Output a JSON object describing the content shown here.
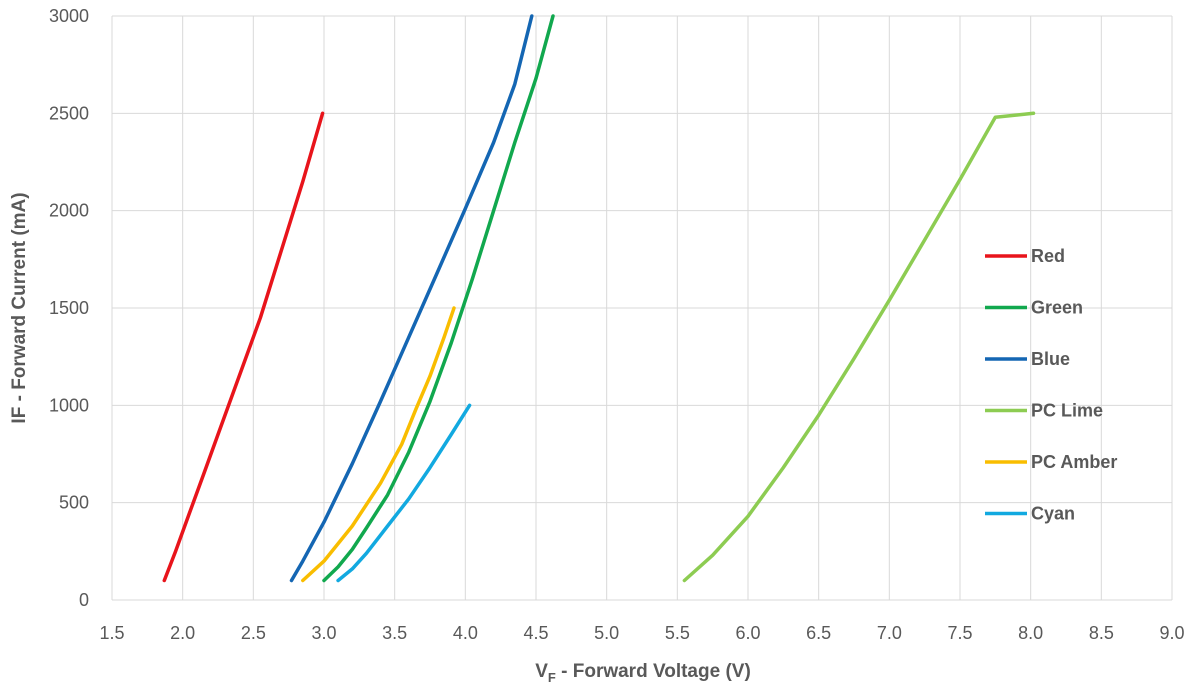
{
  "chart_data": {
    "type": "line",
    "title": "",
    "xlabel_main": "V",
    "xlabel_sub": "F",
    "xlabel_rest": " - Forward Voltage (V)",
    "ylabel": "IF - Forward Current (mA)",
    "xlim": [
      1.5,
      9.0
    ],
    "ylim": [
      0,
      3000
    ],
    "x_ticks": [
      "1.5",
      "2.0",
      "2.5",
      "3.0",
      "3.5",
      "4.0",
      "4.5",
      "5.0",
      "5.5",
      "6.0",
      "6.5",
      "7.0",
      "7.5",
      "8.0",
      "8.5",
      "9.0"
    ],
    "y_ticks": [
      "0",
      "500",
      "1000",
      "1500",
      "2000",
      "2500",
      "3000"
    ],
    "grid": true,
    "legend_position": "right",
    "series": [
      {
        "name": "Red",
        "color": "#e8141b",
        "points": [
          [
            1.87,
            100
          ],
          [
            1.95,
            250
          ],
          [
            2.05,
            450
          ],
          [
            2.15,
            650
          ],
          [
            2.25,
            850
          ],
          [
            2.4,
            1150
          ],
          [
            2.55,
            1450
          ],
          [
            2.7,
            1800
          ],
          [
            2.85,
            2150
          ],
          [
            2.99,
            2500
          ]
        ]
      },
      {
        "name": "Green",
        "color": "#11a84e",
        "points": [
          [
            3.0,
            100
          ],
          [
            3.1,
            170
          ],
          [
            3.2,
            260
          ],
          [
            3.3,
            370
          ],
          [
            3.45,
            540
          ],
          [
            3.6,
            760
          ],
          [
            3.75,
            1020
          ],
          [
            3.9,
            1320
          ],
          [
            4.05,
            1650
          ],
          [
            4.2,
            2000
          ],
          [
            4.35,
            2350
          ],
          [
            4.5,
            2680
          ],
          [
            4.62,
            3000
          ]
        ]
      },
      {
        "name": "Blue",
        "color": "#1466b3",
        "points": [
          [
            2.77,
            100
          ],
          [
            2.85,
            200
          ],
          [
            3.0,
            400
          ],
          [
            3.2,
            700
          ],
          [
            3.4,
            1020
          ],
          [
            3.6,
            1350
          ],
          [
            3.8,
            1680
          ],
          [
            4.0,
            2010
          ],
          [
            4.2,
            2350
          ],
          [
            4.35,
            2650
          ],
          [
            4.47,
            3000
          ]
        ]
      },
      {
        "name": "PC Lime",
        "color": "#8dcc52",
        "points": [
          [
            5.55,
            100
          ],
          [
            5.75,
            230
          ],
          [
            6.0,
            430
          ],
          [
            6.25,
            680
          ],
          [
            6.5,
            950
          ],
          [
            6.75,
            1240
          ],
          [
            7.0,
            1540
          ],
          [
            7.25,
            1850
          ],
          [
            7.5,
            2160
          ],
          [
            7.75,
            2480
          ],
          [
            8.02,
            2500
          ]
        ]
      },
      {
        "name": "PC Amber",
        "color": "#f9bd00",
        "points": [
          [
            2.85,
            100
          ],
          [
            3.0,
            200
          ],
          [
            3.2,
            380
          ],
          [
            3.4,
            600
          ],
          [
            3.55,
            800
          ],
          [
            3.65,
            980
          ],
          [
            3.75,
            1150
          ],
          [
            3.85,
            1350
          ],
          [
            3.92,
            1500
          ]
        ]
      },
      {
        "name": "Cyan",
        "color": "#12a9e0",
        "points": [
          [
            3.1,
            100
          ],
          [
            3.2,
            160
          ],
          [
            3.3,
            240
          ],
          [
            3.45,
            380
          ],
          [
            3.6,
            520
          ],
          [
            3.75,
            680
          ],
          [
            3.9,
            850
          ],
          [
            4.03,
            1000
          ]
        ]
      }
    ]
  }
}
